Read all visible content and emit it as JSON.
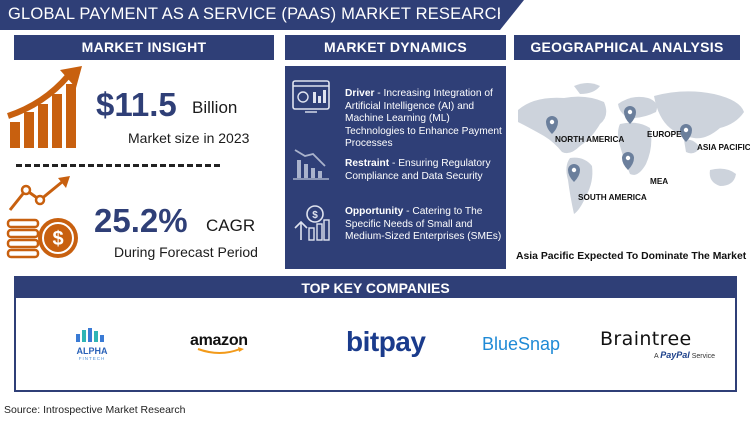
{
  "title": "GLOBAL PAYMENT AS A SERVICE (PAAS) MARKET RESEARCH REPORT",
  "sections": {
    "insight": "MARKET INSIGHT",
    "dynamics": "MARKET DYNAMICS",
    "geo": "GEOGRAPHICAL ANALYSIS",
    "companies": "TOP KEY COMPANIES"
  },
  "insight": {
    "market_size_value": "$11.5",
    "market_size_unit": "Billion",
    "market_size_caption": "Market size in 2023",
    "cagr_value": "25.2%",
    "cagr_unit": "CAGR",
    "cagr_caption": "During Forecast Period"
  },
  "dynamics": [
    {
      "label": "Driver",
      "text": "- Increasing Integration of Artificial Intelligence (AI) and Machine Learning (ML) Technologies to Enhance Payment Processes"
    },
    {
      "label": "Restraint",
      "text": "- Ensuring Regulatory Compliance and Data Security"
    },
    {
      "label": "Opportunity",
      "text": "- Catering to The Specific Needs of Small and Medium-Sized Enterprises (SMEs)"
    }
  ],
  "geo": {
    "regions": [
      "NORTH AMERICA",
      "EUROPE",
      "ASIA PACIFIC",
      "MEA",
      "SOUTH AMERICA"
    ],
    "caption": "Asia Pacific Expected To Dominate The Market"
  },
  "companies": {
    "alpha_name": "ALPHA",
    "alpha_sub": "FINTECH",
    "amazon": "amazon",
    "bitpay": "bitpay",
    "bluesnap": "BlueSnap",
    "braintree": "Braintree",
    "braintree_sub_prefix": "A",
    "braintree_sub_brand": "PayPal",
    "braintree_sub_suffix": "Service"
  },
  "source": "Source: Introspective Market Research",
  "colors": {
    "navy": "#2f3f77",
    "orange": "#c8600f",
    "map_gray": "#cdd3dc",
    "pin": "#6b7f9c"
  }
}
